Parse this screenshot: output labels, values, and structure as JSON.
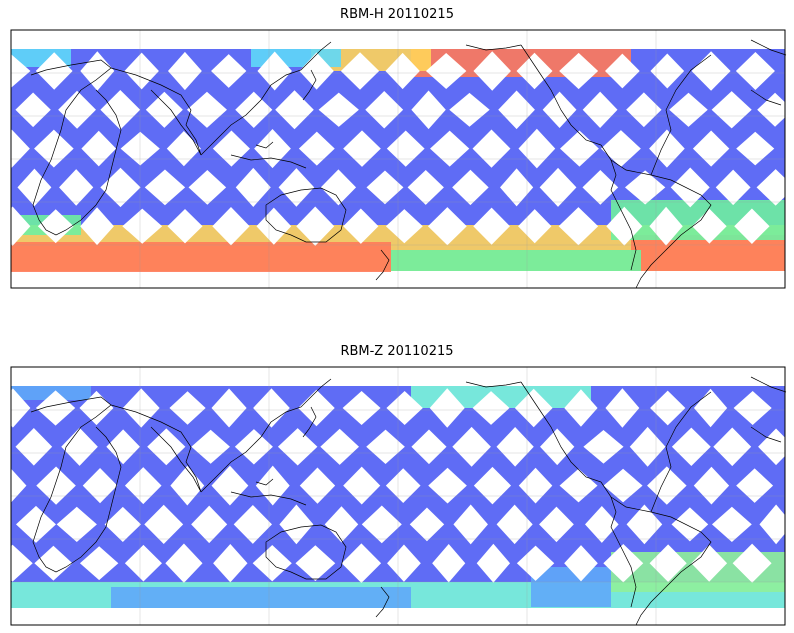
{
  "panels": [
    {
      "title": "RBM-H 20110215",
      "colormap": "jet",
      "swath_colors": {
        "background": "#5f6cf5",
        "high": "#ff7a5a",
        "mid_high": "#ffd45a",
        "mid": "#6ff0a0",
        "low_mid": "#5fd8f8"
      },
      "high_value_regions": [
        "north-pacific-band",
        "southern-ocean-band",
        "south-atlantic"
      ]
    },
    {
      "title": "RBM-Z 20110215",
      "colormap": "jet",
      "swath_colors": {
        "background": "#5f6cf5",
        "high": "#8ff09a",
        "mid_high": "#7af5d8",
        "mid": "#5fd8f8",
        "low_mid": "#5fa8f8"
      },
      "high_value_regions": [
        "southern-ocean-band",
        "south-atlantic"
      ]
    }
  ],
  "map": {
    "projection": "PlateCarree",
    "central_longitude": 180,
    "gridlines": true,
    "coastlines": true
  }
}
